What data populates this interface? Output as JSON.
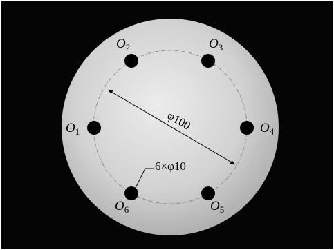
{
  "holes": [
    {
      "main": "O",
      "sub": "1"
    },
    {
      "main": "O",
      "sub": "2"
    },
    {
      "main": "O",
      "sub": "3"
    },
    {
      "main": "O",
      "sub": "4"
    },
    {
      "main": "O",
      "sub": "5"
    },
    {
      "main": "O",
      "sub": "6"
    }
  ],
  "diameter_label": "φ100",
  "hole_label": "6×φ10"
}
